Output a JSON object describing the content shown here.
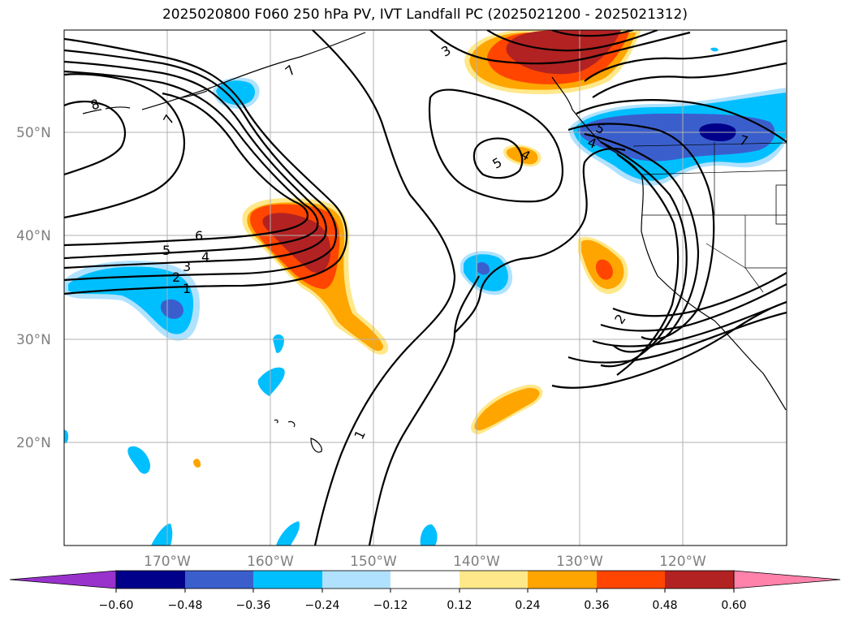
{
  "title": "2025020800 F060 250 hPa PV, IVT Landfall PC (2025021200 - 2025021312)",
  "lat_labels": [
    "50°N",
    "40°N",
    "30°N",
    "20°N"
  ],
  "lon_labels": [
    "170°W",
    "160°W",
    "150°W",
    "140°W",
    "130°W",
    "120°W"
  ],
  "pv_contour_labels": [
    "8",
    "7",
    "7",
    "6",
    "5",
    "4",
    "3",
    "2",
    "1",
    "3",
    "5",
    "4",
    "5",
    "4",
    "7",
    "2",
    "1"
  ],
  "colorbar": {
    "tick_labels": [
      "−0.60",
      "−0.48",
      "−0.36",
      "−0.24",
      "−0.12",
      "0.12",
      "0.24",
      "0.36",
      "0.48",
      "0.60"
    ],
    "colors": [
      "#9932cc",
      "#00008b",
      "#3a5fcd",
      "#00bfff",
      "#b0e2ff",
      "#ffffff",
      "#ffe88a",
      "#ffa500",
      "#ff4500",
      "#b22222",
      "#ff82ab"
    ]
  },
  "map_extent": {
    "lon_min": -180,
    "lon_max": -110,
    "lat_min": 10,
    "lat_max": 60
  }
}
